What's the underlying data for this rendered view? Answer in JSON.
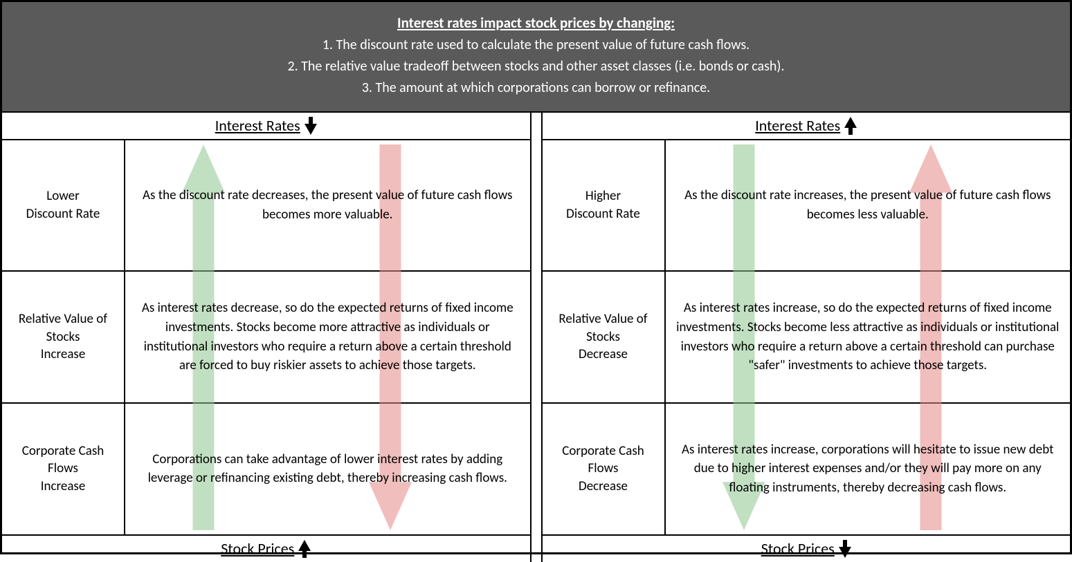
{
  "header": {
    "title": "Interest rates impact stock prices by changing:",
    "items": [
      "1.  The discount rate used to calculate the present value of future cash flows.",
      "2.  The relative value tradeoff between stocks and other asset classes (i.e. bonds or cash).",
      "3.  The amount at which corporations can borrow or refinance."
    ]
  },
  "labels": {
    "interest_rates": "Interest Rates",
    "stock_prices": "Stock Prices"
  },
  "colors": {
    "header_bg": "#5a5a5a",
    "green": "#8fc78f",
    "red": "#e58a87",
    "border": "#000000"
  },
  "left": {
    "top_arrow": "down",
    "bottom_arrow": "up",
    "green_dir": "up",
    "red_dir": "down",
    "rows": [
      {
        "label": "Lower\nDiscount Rate",
        "desc": "As the discount rate decreases, the present value of future cash flows becomes more valuable."
      },
      {
        "label": "Relative Value of Stocks\nIncrease",
        "desc": "As interest rates decrease, so do the expected returns of fixed income investments.  Stocks become more attractive as individuals or institutional investors who require a return above a certain threshold are forced to buy riskier assets to achieve those targets."
      },
      {
        "label": "Corporate Cash Flows\nIncrease",
        "desc": "Corporations can take advantage of lower interest rates by adding leverage or refinancing existing debt, thereby increasing cash flows."
      }
    ]
  },
  "right": {
    "top_arrow": "up",
    "bottom_arrow": "down",
    "green_dir": "down",
    "red_dir": "up",
    "rows": [
      {
        "label": "Higher\nDiscount Rate",
        "desc": "As the discount rate increases, the present value of future cash flows becomes less valuable."
      },
      {
        "label": "Relative Value of Stocks\nDecrease",
        "desc": "As interest rates increase, so do the expected returns of fixed income investments.  Stocks become less attractive as individuals or institutional investors who require a return above a certain threshold can purchase \"safer\" investments to achieve those targets."
      },
      {
        "label": "Corporate Cash Flows\nDecrease",
        "desc": "As interest rates increase, corporations will hesitate to issue new debt due to higher interest expenses and/or they will pay more on any floating instruments, thereby decreasing cash flows."
      }
    ]
  }
}
